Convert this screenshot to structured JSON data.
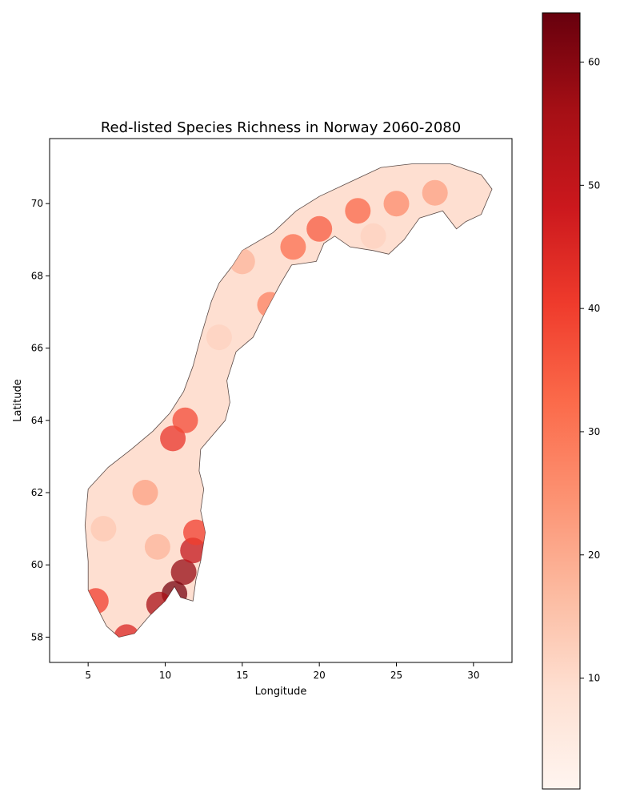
{
  "title": "Red-listed Species Richness in Norway 2060-2080",
  "xlabel": "Longitude",
  "ylabel": "Latitude",
  "chart_data": {
    "type": "heatmap",
    "title": "Red-listed Species Richness in Norway 2060-2080",
    "xlabel": "Longitude",
    "ylabel": "Latitude",
    "xlim": [
      2.5,
      32.5
    ],
    "ylim": [
      57.3,
      71.8
    ],
    "xticks": [
      "5",
      "10",
      "15",
      "20",
      "25",
      "30"
    ],
    "yticks": [
      "58",
      "60",
      "62",
      "64",
      "66",
      "68",
      "70"
    ],
    "colorbar": {
      "min": 1,
      "max": 64,
      "ticks": [
        "10",
        "20",
        "30",
        "40",
        "50",
        "60"
      ],
      "colormap": "Reds",
      "colors": [
        "#fff5f0",
        "#fee0d2",
        "#fcbba1",
        "#fc9272",
        "#fb6a4a",
        "#ef3b2c",
        "#cb181d",
        "#a50f15",
        "#67000d"
      ]
    },
    "grid": false,
    "outline": [
      [
        5.0,
        59.3
      ],
      [
        5.6,
        58.8
      ],
      [
        6.2,
        58.3
      ],
      [
        7.0,
        58.0
      ],
      [
        8.0,
        58.1
      ],
      [
        9.0,
        58.6
      ],
      [
        10.0,
        59.0
      ],
      [
        10.6,
        59.4
      ],
      [
        11.0,
        59.1
      ],
      [
        11.8,
        59.0
      ],
      [
        12.0,
        59.6
      ],
      [
        12.3,
        60.1
      ],
      [
        12.6,
        60.9
      ],
      [
        12.3,
        61.5
      ],
      [
        12.5,
        62.1
      ],
      [
        12.2,
        62.6
      ],
      [
        12.3,
        63.2
      ],
      [
        13.9,
        64.0
      ],
      [
        14.2,
        64.5
      ],
      [
        14.0,
        65.1
      ],
      [
        14.6,
        65.9
      ],
      [
        15.7,
        66.3
      ],
      [
        16.5,
        67.0
      ],
      [
        17.5,
        67.8
      ],
      [
        18.2,
        68.3
      ],
      [
        19.8,
        68.4
      ],
      [
        20.3,
        68.9
      ],
      [
        21.0,
        69.1
      ],
      [
        22.0,
        68.8
      ],
      [
        23.5,
        68.7
      ],
      [
        24.5,
        68.6
      ],
      [
        25.5,
        69.0
      ],
      [
        26.5,
        69.6
      ],
      [
        28.0,
        69.8
      ],
      [
        28.9,
        69.3
      ],
      [
        29.5,
        69.5
      ],
      [
        30.5,
        69.7
      ],
      [
        31.2,
        70.4
      ],
      [
        30.5,
        70.8
      ],
      [
        28.5,
        71.1
      ],
      [
        26.0,
        71.1
      ],
      [
        24.0,
        71.0
      ],
      [
        22.0,
        70.6
      ],
      [
        20.0,
        70.2
      ],
      [
        18.5,
        69.8
      ],
      [
        17.0,
        69.2
      ],
      [
        15.0,
        68.7
      ],
      [
        14.4,
        68.3
      ],
      [
        13.5,
        67.8
      ],
      [
        13.0,
        67.3
      ],
      [
        12.3,
        66.3
      ],
      [
        11.8,
        65.5
      ],
      [
        11.2,
        64.8
      ],
      [
        10.3,
        64.2
      ],
      [
        9.2,
        63.7
      ],
      [
        7.8,
        63.2
      ],
      [
        6.3,
        62.7
      ],
      [
        5.0,
        62.1
      ],
      [
        4.8,
        61.1
      ],
      [
        5.0,
        60.1
      ]
    ],
    "hotspots": [
      {
        "lon": 11.2,
        "lat": 59.8,
        "value": 58
      },
      {
        "lon": 10.6,
        "lat": 59.2,
        "value": 62
      },
      {
        "lon": 9.6,
        "lat": 58.9,
        "value": 55
      },
      {
        "lon": 11.8,
        "lat": 60.4,
        "value": 50
      },
      {
        "lon": 12.0,
        "lat": 60.9,
        "value": 40
      },
      {
        "lon": 7.5,
        "lat": 58.0,
        "value": 45
      },
      {
        "lon": 5.5,
        "lat": 59.0,
        "value": 40
      },
      {
        "lon": 8.7,
        "lat": 62.0,
        "value": 22
      },
      {
        "lon": 10.5,
        "lat": 63.5,
        "value": 42
      },
      {
        "lon": 11.3,
        "lat": 64.0,
        "value": 38
      },
      {
        "lon": 20.0,
        "lat": 69.3,
        "value": 35
      },
      {
        "lon": 22.5,
        "lat": 69.8,
        "value": 33
      },
      {
        "lon": 25.0,
        "lat": 70.0,
        "value": 26
      },
      {
        "lon": 27.5,
        "lat": 70.3,
        "value": 22
      },
      {
        "lon": 18.3,
        "lat": 68.8,
        "value": 32
      },
      {
        "lon": 16.8,
        "lat": 67.2,
        "value": 28
      },
      {
        "lon": 15.0,
        "lat": 68.4,
        "value": 18
      },
      {
        "lon": 13.5,
        "lat": 66.3,
        "value": 12
      },
      {
        "lon": 6.0,
        "lat": 61.0,
        "value": 14
      },
      {
        "lon": 9.5,
        "lat": 60.5,
        "value": 18
      },
      {
        "lon": 23.5,
        "lat": 69.1,
        "value": 12
      }
    ],
    "base_value": 9
  }
}
